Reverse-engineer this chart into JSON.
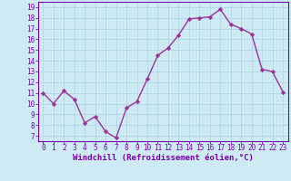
{
  "x": [
    0,
    1,
    2,
    3,
    4,
    5,
    6,
    7,
    8,
    9,
    10,
    11,
    12,
    13,
    14,
    15,
    16,
    17,
    18,
    19,
    20,
    21,
    22,
    23
  ],
  "y": [
    11,
    10,
    11.2,
    10.4,
    8.2,
    8.8,
    7.4,
    6.8,
    9.6,
    10.2,
    12.3,
    14.5,
    15.2,
    16.4,
    17.9,
    18.0,
    18.1,
    18.8,
    17.4,
    17.0,
    16.5,
    13.2,
    13.0,
    11.1
  ],
  "line_color": "#993399",
  "marker": "D",
  "marker_size": 2.2,
  "linewidth": 1.0,
  "xlabel": "Windchill (Refroidissement éolien,°C)",
  "xlabel_fontsize": 6.5,
  "ylim": [
    6.5,
    19.5
  ],
  "xlim": [
    -0.5,
    23.5
  ],
  "yticks": [
    7,
    8,
    9,
    10,
    11,
    12,
    13,
    14,
    15,
    16,
    17,
    18,
    19
  ],
  "xticks": [
    0,
    1,
    2,
    3,
    4,
    5,
    6,
    7,
    8,
    9,
    10,
    11,
    12,
    13,
    14,
    15,
    16,
    17,
    18,
    19,
    20,
    21,
    22,
    23
  ],
  "bg_color": "#cdeaf5",
  "grid_color": "#b0d8e8",
  "border_color": "#7700aa",
  "tick_color": "#7700aa",
  "label_color": "#7700aa",
  "tick_fontsize": 5.5
}
